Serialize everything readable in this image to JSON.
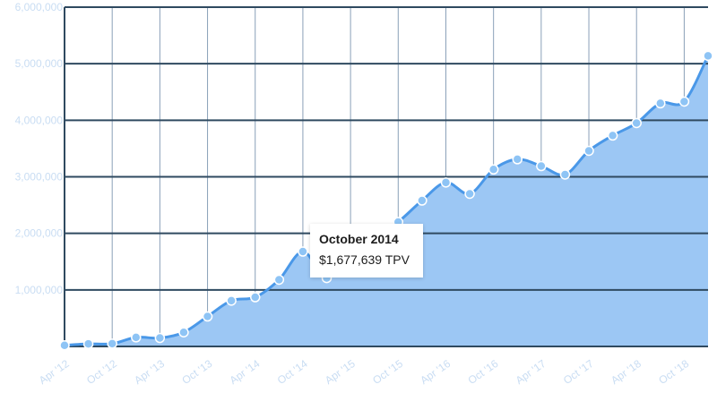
{
  "chart_data": {
    "type": "area",
    "x": [
      "Apr '12",
      "Jul '12",
      "Oct '12",
      "Jan '13",
      "Apr '13",
      "Jul '13",
      "Oct '13",
      "Jan '14",
      "Apr '14",
      "Jul '14",
      "Oct '14",
      "Jan '15",
      "Apr '15",
      "Jul '15",
      "Oct '15",
      "Jan '16",
      "Apr '16",
      "Jul '16",
      "Oct '16",
      "Jan '17",
      "Apr '17",
      "Jul '17",
      "Oct '17",
      "Jan '18",
      "Apr '18",
      "Jul '18",
      "Oct '18",
      "Jan '19"
    ],
    "values": [
      20000,
      45000,
      50000,
      160000,
      150000,
      250000,
      530000,
      810000,
      870000,
      1180000,
      1677639,
      1210000,
      1660000,
      1890000,
      2200000,
      2580000,
      2900000,
      2700000,
      3130000,
      3310000,
      3190000,
      3040000,
      3460000,
      3730000,
      3950000,
      4300000,
      4330000,
      5140000
    ],
    "x_tick_labels": [
      "Apr '12",
      "Oct '12",
      "Apr '13",
      "Oct '13",
      "Apr '14",
      "Oct '14",
      "Apr '15",
      "Oct '15",
      "Apr '16",
      "Oct '16",
      "Apr '17",
      "Oct '17",
      "Apr '18",
      "Oct '18"
    ],
    "y_tick_labels": [
      "1,000,000",
      "2,000,000",
      "3,000,000",
      "4,000,000",
      "5,000,000",
      "6,000,000"
    ],
    "ylim": [
      0,
      6000000
    ],
    "grid": true,
    "colors": {
      "line": "#4a98e8",
      "fill": "#9cc7f4",
      "grid": "#2f4a60",
      "marker_fill": "#8ec4f5",
      "marker_stroke": "#ffffff"
    }
  },
  "tooltip": {
    "title": "October 2014",
    "value": "$1,677,639 TPV"
  }
}
